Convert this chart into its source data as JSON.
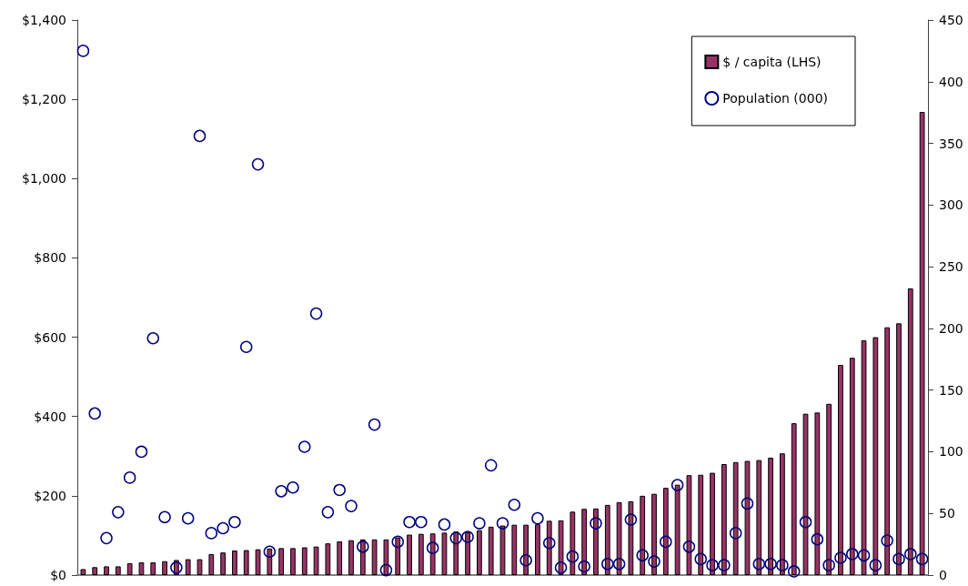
{
  "chart_data": {
    "type": "bar",
    "categories": [
      null,
      null,
      null,
      null,
      null,
      null,
      null,
      null,
      null,
      null,
      null,
      null,
      null,
      null,
      null,
      null,
      null,
      null,
      null,
      null,
      null,
      null,
      null,
      null,
      null,
      null,
      null,
      null,
      null,
      null,
      null,
      null,
      null,
      null,
      null,
      null,
      null,
      null,
      null,
      null,
      null,
      null,
      null,
      null,
      null,
      null,
      null,
      null,
      null,
      null,
      null,
      null,
      null,
      null,
      null,
      null,
      null,
      null,
      null,
      null,
      null,
      null,
      null,
      null,
      null,
      null,
      null,
      null,
      null,
      null,
      null,
      null,
      null
    ],
    "series": [
      {
        "name": "$ / capita (LHS)",
        "color": "#993366",
        "values": [
          15,
          20,
          22,
          22,
          30,
          32,
          32,
          35,
          38,
          40,
          40,
          53,
          57,
          62,
          63,
          65,
          67,
          68,
          68,
          70,
          72,
          80,
          85,
          88,
          90,
          90,
          90,
          95,
          102,
          104,
          105,
          107,
          110,
          108,
          113,
          122,
          125,
          127,
          127,
          128,
          137,
          138,
          160,
          167,
          168,
          177,
          184,
          186,
          200,
          205,
          220,
          228,
          252,
          253,
          258,
          280,
          285,
          288,
          290,
          296,
          307,
          383,
          407,
          410,
          432,
          530,
          548,
          592,
          600,
          625,
          635,
          723,
          1168
        ]
      },
      {
        "name": "Population (000)",
        "type": "scatter",
        "axis": "y2",
        "color": "#000080",
        "marker": "circle",
        "values": [
          425,
          131,
          30,
          51,
          79,
          100,
          192,
          47,
          6,
          46,
          356,
          34,
          38,
          43,
          185,
          333,
          19,
          68,
          71,
          104,
          212,
          51,
          69,
          56,
          23,
          122,
          4,
          27,
          43,
          43,
          22,
          41,
          30,
          31,
          42,
          89,
          42,
          57,
          12,
          46,
          26,
          6,
          15,
          7,
          42,
          9,
          9,
          45,
          16,
          11,
          27,
          73,
          23,
          13,
          8,
          8,
          34,
          58,
          9,
          9,
          8,
          3,
          43,
          29,
          8,
          14,
          17,
          16,
          8,
          28,
          13,
          17,
          13
        ]
      }
    ],
    "ylim": [
      0,
      1400
    ],
    "yticks": [
      {
        "value": 0,
        "label": "$0"
      },
      {
        "value": 200,
        "label": "$200"
      },
      {
        "value": 400,
        "label": "$400"
      },
      {
        "value": 600,
        "label": "$600"
      },
      {
        "value": 800,
        "label": "$800"
      },
      {
        "value": 1000,
        "label": "$1,000"
      },
      {
        "value": 1200,
        "label": "$1,200"
      },
      {
        "value": 1400,
        "label": "$1,400"
      }
    ],
    "y2lim": [
      0,
      450
    ],
    "y2ticks": [
      0,
      50,
      100,
      150,
      200,
      250,
      300,
      350,
      400,
      450
    ],
    "legend": "top right",
    "grid": false
  }
}
